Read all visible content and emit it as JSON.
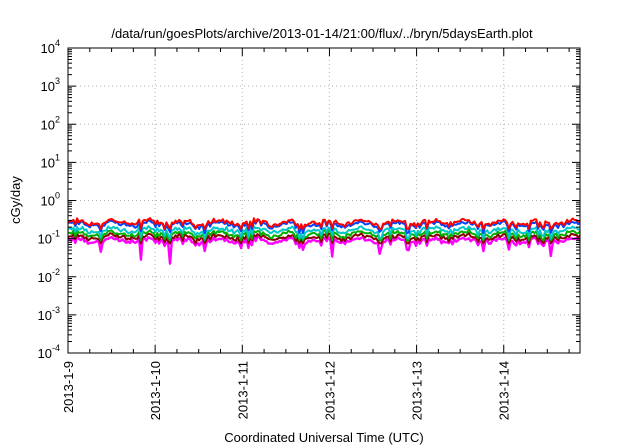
{
  "chart_data": {
    "type": "line",
    "title": "/data/run/goesPlots/archive/2013-01-14/21:00/flux/../bryn/5daysEarth.plot",
    "xlabel": "Coordinated Universal Time (UTC)",
    "ylabel": "cGy/day",
    "yscale": "log",
    "ylim": [
      0.0001,
      10000
    ],
    "y_ticks": [
      {
        "base": "10",
        "exp": "-4"
      },
      {
        "base": "10",
        "exp": "-3"
      },
      {
        "base": "10",
        "exp": "-2"
      },
      {
        "base": "10",
        "exp": "-1"
      },
      {
        "base": "10",
        "exp": "0"
      },
      {
        "base": "10",
        "exp": "1"
      },
      {
        "base": "10",
        "exp": "2"
      },
      {
        "base": "10",
        "exp": "3"
      },
      {
        "base": "10",
        "exp": "4"
      }
    ],
    "xlim": [
      "2013-01-09 00:00",
      "2013-01-14 21:00"
    ],
    "x_ticks": [
      "2013-1-9",
      "2013-1-10",
      "2013-1-11",
      "2013-1-12",
      "2013-1-13",
      "2013-1-14"
    ],
    "grid": true,
    "legend": "none",
    "series": [
      {
        "color": "#ff0000",
        "typical": 0.27,
        "low": 0.18,
        "high": 0.38
      },
      {
        "color": "#0044ff",
        "typical": 0.24,
        "low": 0.14,
        "high": 0.36
      },
      {
        "color": "#00c8c8",
        "typical": 0.17,
        "low": 0.1,
        "high": 0.24
      },
      {
        "color": "#00b000",
        "typical": 0.135,
        "low": 0.09,
        "high": 0.18
      },
      {
        "color": "#8b0000",
        "typical": 0.11,
        "low": 0.075,
        "high": 0.15
      },
      {
        "color": "#ff00ff",
        "typical": 0.09,
        "low": 0.022,
        "high": 0.12
      }
    ],
    "notable_dips": [
      {
        "x": "2013-01-10 04:00",
        "y": 0.022
      },
      {
        "x": "2013-01-09 20:00",
        "y": 0.028
      },
      {
        "x": "2013-01-12 01:00",
        "y": 0.034
      },
      {
        "x": "2013-01-12 14:00",
        "y": 0.04
      },
      {
        "x": "2013-01-12 22:00",
        "y": 0.05
      },
      {
        "x": "2013-01-14 13:00",
        "y": 0.035
      },
      {
        "x": "2013-01-09 09:00",
        "y": 0.045
      }
    ]
  }
}
